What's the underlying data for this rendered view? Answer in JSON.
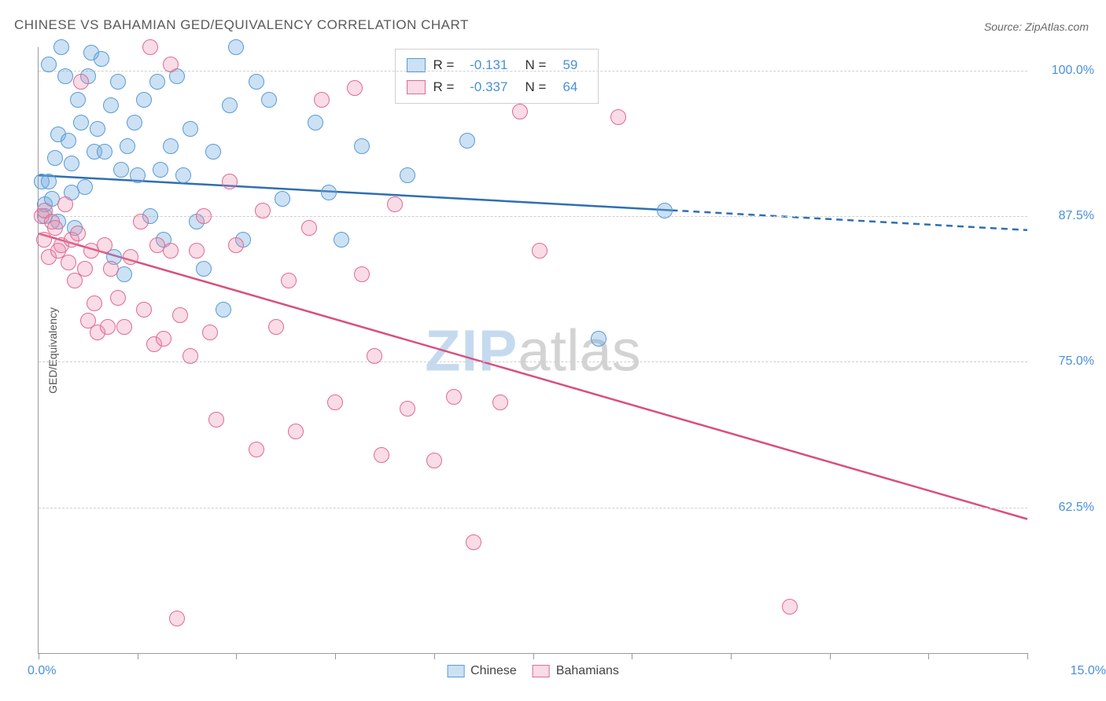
{
  "title": "CHINESE VS BAHAMIAN GED/EQUIVALENCY CORRELATION CHART",
  "source_text": "Source: ZipAtlas.com",
  "y_axis_label": "GED/Equivalency",
  "chart": {
    "type": "scatter",
    "x_domain": [
      0,
      15
    ],
    "y_domain": [
      50,
      102
    ],
    "x_min_label": "0.0%",
    "x_max_label": "15.0%",
    "y_ticks": [
      62.5,
      75.0,
      87.5,
      100.0
    ],
    "y_tick_labels": [
      "62.5%",
      "75.0%",
      "87.5%",
      "100.0%"
    ],
    "x_ticks": [
      0,
      1.5,
      3.0,
      4.5,
      6.0,
      7.5,
      9.0,
      10.5,
      12.0,
      13.5,
      15.0
    ],
    "background_color": "#ffffff",
    "grid_color": "#cfcfcf",
    "marker_radius": 10,
    "marker_border_width": 1.5,
    "line_width": 2.5,
    "watermark_zip": "ZIP",
    "watermark_atlas": "atlas"
  },
  "series": [
    {
      "name": "Chinese",
      "fill": "rgba(108, 170, 224, 0.35)",
      "stroke": "#5a9bd4",
      "line_color": "#2f6fb0",
      "trend": {
        "x0": 0,
        "y0": 91.0,
        "x_solid_end": 9.6,
        "y_solid_end": 88.0,
        "x1": 15,
        "y1": 86.3
      },
      "points": [
        [
          0.05,
          90.5
        ],
        [
          0.1,
          88.5
        ],
        [
          0.1,
          87.5
        ],
        [
          0.15,
          100.5
        ],
        [
          0.15,
          90.5
        ],
        [
          0.2,
          89.0
        ],
        [
          0.25,
          92.5
        ],
        [
          0.3,
          94.5
        ],
        [
          0.3,
          87.0
        ],
        [
          0.35,
          102.0
        ],
        [
          0.4,
          99.5
        ],
        [
          0.45,
          94.0
        ],
        [
          0.5,
          92.0
        ],
        [
          0.5,
          89.5
        ],
        [
          0.55,
          86.5
        ],
        [
          0.6,
          97.5
        ],
        [
          0.65,
          95.5
        ],
        [
          0.7,
          90.0
        ],
        [
          0.75,
          99.5
        ],
        [
          0.8,
          101.5
        ],
        [
          0.85,
          93.0
        ],
        [
          0.9,
          95.0
        ],
        [
          0.95,
          101.0
        ],
        [
          1.0,
          93.0
        ],
        [
          1.1,
          97.0
        ],
        [
          1.15,
          84.0
        ],
        [
          1.2,
          99.0
        ],
        [
          1.25,
          91.5
        ],
        [
          1.3,
          82.5
        ],
        [
          1.35,
          93.5
        ],
        [
          1.45,
          95.5
        ],
        [
          1.5,
          91.0
        ],
        [
          1.6,
          97.5
        ],
        [
          1.7,
          87.5
        ],
        [
          1.8,
          99.0
        ],
        [
          1.85,
          91.5
        ],
        [
          1.9,
          85.5
        ],
        [
          2.0,
          93.5
        ],
        [
          2.1,
          99.5
        ],
        [
          2.2,
          91.0
        ],
        [
          2.3,
          95.0
        ],
        [
          2.4,
          87.0
        ],
        [
          2.5,
          83.0
        ],
        [
          2.65,
          93.0
        ],
        [
          2.8,
          79.5
        ],
        [
          2.9,
          97.0
        ],
        [
          3.0,
          102.0
        ],
        [
          3.1,
          85.5
        ],
        [
          3.3,
          99.0
        ],
        [
          3.5,
          97.5
        ],
        [
          3.7,
          89.0
        ],
        [
          4.2,
          95.5
        ],
        [
          4.4,
          89.5
        ],
        [
          4.6,
          85.5
        ],
        [
          4.9,
          93.5
        ],
        [
          5.6,
          91.0
        ],
        [
          6.5,
          94.0
        ],
        [
          8.5,
          77.0
        ],
        [
          9.5,
          88.0
        ]
      ]
    },
    {
      "name": "Bahamians",
      "fill": "rgba(234, 140, 170, 0.30)",
      "stroke": "#e06a92",
      "line_color": "#d94f7e",
      "trend": {
        "x0": 0,
        "y0": 86.0,
        "x_solid_end": 15,
        "y_solid_end": 61.5,
        "x1": 15,
        "y1": 61.5
      },
      "points": [
        [
          0.05,
          87.5
        ],
        [
          0.08,
          85.5
        ],
        [
          0.1,
          88.0
        ],
        [
          0.15,
          84.0
        ],
        [
          0.2,
          87.0
        ],
        [
          0.25,
          86.5
        ],
        [
          0.3,
          84.5
        ],
        [
          0.35,
          85.0
        ],
        [
          0.4,
          88.5
        ],
        [
          0.45,
          83.5
        ],
        [
          0.5,
          85.5
        ],
        [
          0.55,
          82.0
        ],
        [
          0.6,
          86.0
        ],
        [
          0.65,
          99.0
        ],
        [
          0.7,
          83.0
        ],
        [
          0.75,
          78.5
        ],
        [
          0.8,
          84.5
        ],
        [
          0.85,
          80.0
        ],
        [
          0.9,
          77.5
        ],
        [
          1.0,
          85.0
        ],
        [
          1.05,
          78.0
        ],
        [
          1.1,
          83.0
        ],
        [
          1.2,
          80.5
        ],
        [
          1.3,
          78.0
        ],
        [
          1.4,
          84.0
        ],
        [
          1.55,
          87.0
        ],
        [
          1.6,
          79.5
        ],
        [
          1.7,
          102.0
        ],
        [
          1.75,
          76.5
        ],
        [
          1.8,
          85.0
        ],
        [
          1.9,
          77.0
        ],
        [
          2.0,
          100.5
        ],
        [
          2.0,
          84.5
        ],
        [
          2.1,
          53.0
        ],
        [
          2.15,
          79.0
        ],
        [
          2.3,
          75.5
        ],
        [
          2.4,
          84.5
        ],
        [
          2.5,
          87.5
        ],
        [
          2.6,
          77.5
        ],
        [
          2.7,
          70.0
        ],
        [
          2.9,
          90.5
        ],
        [
          3.0,
          85.0
        ],
        [
          3.3,
          67.5
        ],
        [
          3.4,
          88.0
        ],
        [
          3.6,
          78.0
        ],
        [
          3.8,
          82.0
        ],
        [
          3.9,
          69.0
        ],
        [
          4.1,
          86.5
        ],
        [
          4.3,
          97.5
        ],
        [
          4.5,
          71.5
        ],
        [
          4.8,
          98.5
        ],
        [
          4.9,
          82.5
        ],
        [
          5.1,
          75.5
        ],
        [
          5.2,
          67.0
        ],
        [
          5.4,
          88.5
        ],
        [
          5.6,
          71.0
        ],
        [
          6.0,
          66.5
        ],
        [
          6.3,
          72.0
        ],
        [
          6.6,
          59.5
        ],
        [
          7.0,
          71.5
        ],
        [
          7.3,
          96.5
        ],
        [
          7.6,
          84.5
        ],
        [
          11.4,
          54.0
        ],
        [
          8.8,
          96.0
        ]
      ]
    }
  ],
  "legend_top": {
    "rows": [
      {
        "swatch_fill": "rgba(108,170,224,0.35)",
        "swatch_stroke": "#5a9bd4",
        "r_label": "R =",
        "r_value": "-0.131",
        "n_label": "N =",
        "n_value": "59"
      },
      {
        "swatch_fill": "rgba(234,140,170,0.30)",
        "swatch_stroke": "#e06a92",
        "r_label": "R =",
        "r_value": "-0.337",
        "n_label": "N =",
        "n_value": "64"
      }
    ]
  },
  "legend_bottom": {
    "items": [
      {
        "swatch_fill": "rgba(108,170,224,0.35)",
        "swatch_stroke": "#5a9bd4",
        "label": "Chinese"
      },
      {
        "swatch_fill": "rgba(234,140,170,0.30)",
        "swatch_stroke": "#e06a92",
        "label": "Bahamians"
      }
    ]
  }
}
